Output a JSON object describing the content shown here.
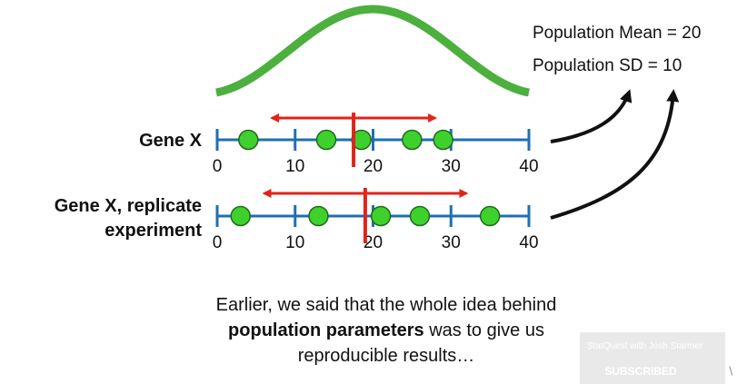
{
  "rows": [
    {
      "label_lines": [
        "Gene X"
      ],
      "points": [
        4,
        14,
        18.5,
        25,
        29
      ],
      "mean": 17.5,
      "sd_span": [
        7,
        28
      ]
    },
    {
      "label_lines": [
        "Gene X, replicate",
        "experiment"
      ],
      "points": [
        3,
        13,
        21,
        26,
        35
      ],
      "mean": 19,
      "sd_span": [
        6,
        32
      ]
    }
  ],
  "axis": {
    "min": 0,
    "max": 40,
    "ticks": [
      0,
      10,
      20,
      30,
      40
    ]
  },
  "population": {
    "mean_text": "Population Mean = 20",
    "sd_text": "Population SD = 10"
  },
  "caption": {
    "line1": "Earlier, we said that the whole idea behind",
    "line2_bold": "population parameters",
    "line2_rest": " was to give us",
    "line3": "reproducible results…"
  },
  "watermark": {
    "channel": "StatQuest with Josh Starmer",
    "button": "SUBSCRIBED"
  },
  "colors": {
    "axis": "#1f6fb3",
    "point": "#3ed12e",
    "point_stroke": "#1f6a1a",
    "arrow": "#e2231a",
    "curve": "#4caf3e",
    "black": "#111111"
  }
}
